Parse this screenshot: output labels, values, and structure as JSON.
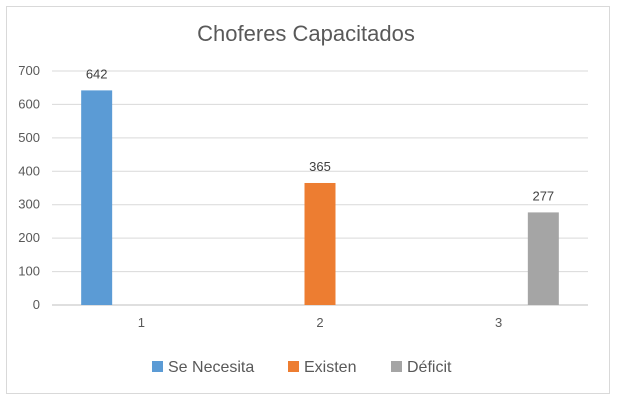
{
  "chart_data": {
    "type": "bar",
    "title": "Choferes Capacitados",
    "xlabel": "",
    "ylabel": "",
    "categories": [
      "1",
      "2",
      "3"
    ],
    "series": [
      {
        "name": "Se Necesita",
        "color": "#5b9bd5",
        "values": [
          642,
          null,
          null
        ]
      },
      {
        "name": "Existen",
        "color": "#ed7d31",
        "values": [
          null,
          365,
          null
        ]
      },
      {
        "name": "Déficit",
        "color": "#a5a5a5",
        "values": [
          null,
          null,
          277
        ]
      }
    ],
    "ylim": [
      0,
      700
    ],
    "yticks": [
      0,
      100,
      200,
      300,
      400,
      500,
      600,
      700
    ],
    "grid": true,
    "legend_position": "bottom",
    "data_labels": true
  }
}
